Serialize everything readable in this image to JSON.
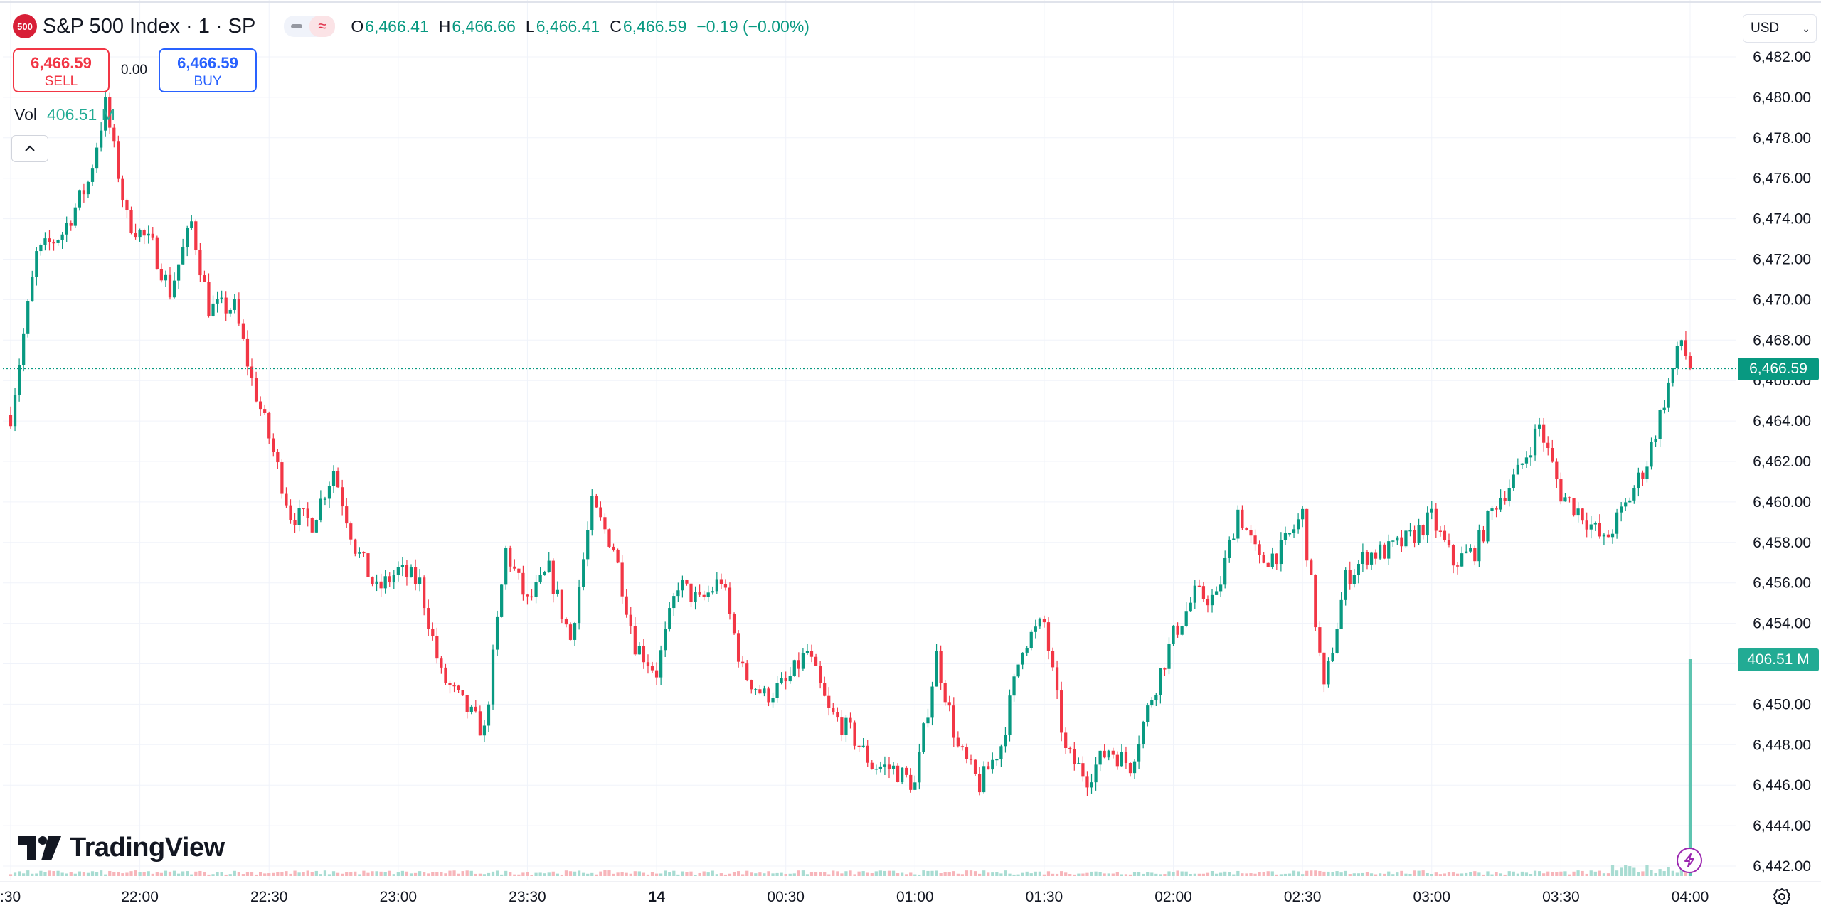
{
  "header": {
    "badge": "500",
    "symbol_title": "S&P 500 Index · 1 · SP",
    "ohlc": [
      {
        "label": "O",
        "value": "6,466.41"
      },
      {
        "label": "H",
        "value": "6,466.66"
      },
      {
        "label": "L",
        "value": "6,466.41"
      },
      {
        "label": "C",
        "value": "6,466.59"
      }
    ],
    "change": "−0.19 (−0.00%)",
    "flag_icon": "wave-icon"
  },
  "trade": {
    "sell_price": "6,466.59",
    "sell_label": "SELL",
    "spread": "0.00",
    "buy_price": "6,466.59",
    "buy_label": "BUY"
  },
  "volume_legend": {
    "label": "Vol",
    "value": "406.51 M"
  },
  "currency": "USD",
  "brand": "TradingView",
  "colors": {
    "up": "#089981",
    "down": "#f23645",
    "volume_up": "#a8dcd2",
    "volume_down": "#f7b5ba",
    "grid": "#f0f3fa"
  },
  "chart_data": {
    "type": "candlestick",
    "title": "S&P 500 Index · 1 · SP",
    "interval": "1 minute",
    "y_axis": {
      "position": "right",
      "ticks": [
        "6,482.00",
        "6,480.00",
        "6,478.00",
        "6,476.00",
        "6,474.00",
        "6,472.00",
        "6,470.00",
        "6,468.00",
        "6,466.00",
        "6,464.00",
        "6,462.00",
        "6,460.00",
        "6,458.00",
        "6,456.00",
        "6,454.00",
        "6,452.00",
        "6,450.00",
        "6,448.00",
        "6,446.00",
        "6,444.00",
        "6,442.00"
      ],
      "ylim": [
        6441.5,
        6483.5
      ]
    },
    "x_axis": {
      "ticks": [
        {
          "label": ":30",
          "bold": false
        },
        {
          "label": "22:00",
          "bold": false
        },
        {
          "label": "22:30",
          "bold": false
        },
        {
          "label": "23:00",
          "bold": false
        },
        {
          "label": "23:30",
          "bold": false
        },
        {
          "label": "14",
          "bold": true
        },
        {
          "label": "00:30",
          "bold": false
        },
        {
          "label": "01:00",
          "bold": false
        },
        {
          "label": "01:30",
          "bold": false
        },
        {
          "label": "02:00",
          "bold": false
        },
        {
          "label": "02:30",
          "bold": false
        },
        {
          "label": "03:00",
          "bold": false
        },
        {
          "label": "03:30",
          "bold": false
        },
        {
          "label": "04:00",
          "bold": false
        }
      ]
    },
    "last_price": "6,466.59",
    "last_volume": "406.51 M",
    "grid": true,
    "close_path": [
      {
        "t": "21:30",
        "v": 6464.3
      },
      {
        "t": "21:36",
        "v": 6472.2
      },
      {
        "t": "21:42",
        "v": 6473.3
      },
      {
        "t": "21:48",
        "v": 6475.8
      },
      {
        "t": "21:52",
        "v": 6479.6
      },
      {
        "t": "21:57",
        "v": 6474.0
      },
      {
        "t": "22:03",
        "v": 6472.6
      },
      {
        "t": "22:07",
        "v": 6470.4
      },
      {
        "t": "22:12",
        "v": 6473.8
      },
      {
        "t": "22:16",
        "v": 6469.6
      },
      {
        "t": "22:22",
        "v": 6469.6
      },
      {
        "t": "22:26",
        "v": 6466.0
      },
      {
        "t": "22:30",
        "v": 6463.2
      },
      {
        "t": "22:35",
        "v": 6459.4
      },
      {
        "t": "22:40",
        "v": 6459.0
      },
      {
        "t": "22:45",
        "v": 6461.6
      },
      {
        "t": "22:50",
        "v": 6457.8
      },
      {
        "t": "22:55",
        "v": 6455.6
      },
      {
        "t": "23:00",
        "v": 6456.6
      },
      {
        "t": "23:05",
        "v": 6456.0
      },
      {
        "t": "23:10",
        "v": 6451.4
      },
      {
        "t": "23:15",
        "v": 6450.0
      },
      {
        "t": "23:20",
        "v": 6448.6
      },
      {
        "t": "23:25",
        "v": 6457.6
      },
      {
        "t": "23:30",
        "v": 6455.0
      },
      {
        "t": "23:35",
        "v": 6456.6
      },
      {
        "t": "23:40",
        "v": 6453.2
      },
      {
        "t": "23:45",
        "v": 6459.8
      },
      {
        "t": "23:50",
        "v": 6457.8
      },
      {
        "t": "23:55",
        "v": 6453.0
      },
      {
        "t": "00:00",
        "v": 6451.6
      },
      {
        "t": "00:05",
        "v": 6456.0
      },
      {
        "t": "00:10",
        "v": 6455.0
      },
      {
        "t": "00:15",
        "v": 6456.2
      },
      {
        "t": "00:20",
        "v": 6451.6
      },
      {
        "t": "00:25",
        "v": 6450.4
      },
      {
        "t": "00:30",
        "v": 6451.0
      },
      {
        "t": "00:35",
        "v": 6452.6
      },
      {
        "t": "00:40",
        "v": 6449.6
      },
      {
        "t": "00:45",
        "v": 6448.6
      },
      {
        "t": "00:50",
        "v": 6447.0
      },
      {
        "t": "00:55",
        "v": 6446.8
      },
      {
        "t": "01:00",
        "v": 6446.0
      },
      {
        "t": "01:05",
        "v": 6452.4
      },
      {
        "t": "01:10",
        "v": 6447.8
      },
      {
        "t": "01:15",
        "v": 6446.0
      },
      {
        "t": "01:20",
        "v": 6448.0
      },
      {
        "t": "01:25",
        "v": 6453.0
      },
      {
        "t": "01:30",
        "v": 6454.0
      },
      {
        "t": "01:35",
        "v": 6447.6
      },
      {
        "t": "01:40",
        "v": 6446.4
      },
      {
        "t": "01:45",
        "v": 6447.8
      },
      {
        "t": "01:50",
        "v": 6447.0
      },
      {
        "t": "01:55",
        "v": 6450.4
      },
      {
        "t": "02:00",
        "v": 6453.4
      },
      {
        "t": "02:05",
        "v": 6455.4
      },
      {
        "t": "02:10",
        "v": 6455.2
      },
      {
        "t": "02:15",
        "v": 6459.6
      },
      {
        "t": "02:20",
        "v": 6457.0
      },
      {
        "t": "02:25",
        "v": 6457.6
      },
      {
        "t": "02:30",
        "v": 6459.4
      },
      {
        "t": "02:35",
        "v": 6450.6
      },
      {
        "t": "02:40",
        "v": 6456.2
      },
      {
        "t": "02:45",
        "v": 6457.4
      },
      {
        "t": "02:50",
        "v": 6457.6
      },
      {
        "t": "02:55",
        "v": 6458.2
      },
      {
        "t": "03:00",
        "v": 6459.2
      },
      {
        "t": "03:05",
        "v": 6457.0
      },
      {
        "t": "03:10",
        "v": 6457.6
      },
      {
        "t": "03:15",
        "v": 6460.0
      },
      {
        "t": "03:20",
        "v": 6461.4
      },
      {
        "t": "03:25",
        "v": 6463.8
      },
      {
        "t": "03:30",
        "v": 6460.4
      },
      {
        "t": "03:35",
        "v": 6459.4
      },
      {
        "t": "03:40",
        "v": 6458.0
      },
      {
        "t": "03:45",
        "v": 6459.8
      },
      {
        "t": "03:50",
        "v": 6462.0
      },
      {
        "t": "03:55",
        "v": 6465.8
      },
      {
        "t": "03:58",
        "v": 6468.0
      },
      {
        "t": "04:00",
        "v": 6466.59
      }
    ]
  }
}
